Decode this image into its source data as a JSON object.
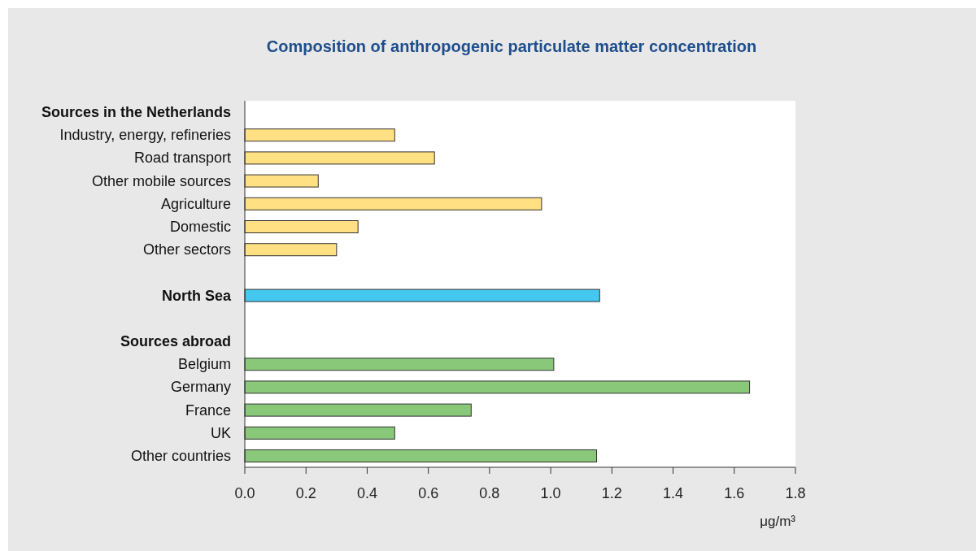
{
  "chart_data": {
    "type": "bar",
    "orientation": "horizontal",
    "title": "Composition of anthropogenic particulate matter concentration",
    "xlabel": "μg/m³",
    "categories": [
      "Sources in the Netherlands",
      "Industry, energy, refineries",
      "Road transport",
      "Other mobile sources",
      "Agriculture",
      "Domestic",
      "Other sectors",
      null,
      "North Sea",
      null,
      "Sources abroad",
      "Belgium",
      "Germany",
      "France",
      "UK",
      "Other countries"
    ],
    "values": [
      null,
      0.49,
      0.62,
      0.24,
      0.97,
      0.37,
      0.3,
      null,
      1.16,
      null,
      null,
      1.01,
      1.65,
      0.74,
      0.49,
      1.15
    ],
    "colors": [
      null,
      "#ffe082",
      "#ffe082",
      "#ffe082",
      "#ffe082",
      "#ffe082",
      "#ffe082",
      null,
      "#44c8f0",
      null,
      null,
      "#88c878",
      "#88c878",
      "#88c878",
      "#88c878",
      "#88c878"
    ],
    "xlim": [
      0,
      1.8
    ],
    "xticks": [
      {
        "value": 0,
        "label": "0.0"
      },
      0.2,
      0.4,
      0.6,
      0.8,
      {
        "value": 1,
        "label": "1.0"
      },
      1.2,
      1.4,
      1.6,
      1.8
    ],
    "grid": false
  }
}
